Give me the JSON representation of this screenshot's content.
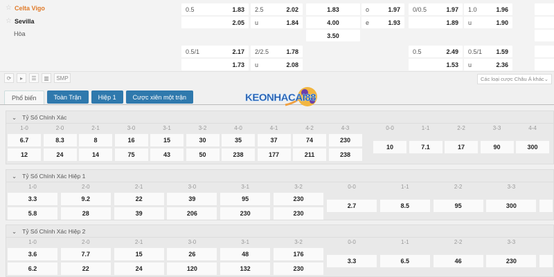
{
  "match": {
    "home": "Celta Vigo",
    "away": "Sevilla",
    "draw": "Hòa",
    "star_icon": "star-icon"
  },
  "odds_rows": [
    [
      [
        "0.5",
        "1.83"
      ],
      [
        "2.5",
        "2.02"
      ],
      [
        "",
        "1.83"
      ],
      [
        "o",
        "1.97"
      ],
      [
        "0/0.5",
        "1.97"
      ],
      [
        "1.0",
        "1.96"
      ]
    ],
    [
      [
        "",
        "2.05"
      ],
      [
        "u",
        "1.84"
      ],
      [
        "",
        "4.00"
      ],
      [
        "e",
        "1.93"
      ],
      [
        "",
        "1.89"
      ],
      [
        "u",
        "1.90"
      ]
    ],
    [
      null,
      null,
      [
        "",
        "3.50"
      ],
      null,
      null,
      null
    ],
    [
      [
        "0.5/1",
        "2.17"
      ],
      [
        "2/2.5",
        "1.78"
      ],
      null,
      null,
      [
        "0.5",
        "2.49"
      ],
      [
        "0.5/1",
        "1.59"
      ]
    ],
    [
      [
        "",
        "1.73"
      ],
      [
        "u",
        "2.08"
      ],
      null,
      null,
      [
        "",
        "1.53"
      ],
      [
        "u",
        "2.36"
      ]
    ]
  ],
  "toolbar": {
    "icons": [
      "refresh-icon",
      "play-icon",
      "list-icon",
      "stats-icon"
    ],
    "smp": "SMP",
    "dropdown": "Các loại cược Châu Á khác"
  },
  "tabs": [
    "Phổ biến",
    "Toàn Trận",
    "Hiệp 1",
    "Cược xiên một trận"
  ],
  "logo_text": "KEONHACAI88",
  "sections": [
    {
      "title": "Tỷ Số Chính Xác",
      "scores": [
        "1-0",
        "2-0",
        "2-1",
        "3-0",
        "3-1",
        "3-2",
        "4-0",
        "4-1",
        "4-2",
        "4-3"
      ],
      "home": [
        "6.7",
        "8.3",
        "8",
        "16",
        "15",
        "30",
        "35",
        "37",
        "74",
        "230"
      ],
      "away": [
        "12",
        "24",
        "14",
        "75",
        "43",
        "50",
        "238",
        "177",
        "211",
        "238"
      ],
      "draw_scores": [
        "0-0",
        "1-1",
        "2-2",
        "3-3",
        "4-4"
      ],
      "draw": [
        "10",
        "7.1",
        "17",
        "90",
        "300"
      ]
    },
    {
      "title": "Tỷ Số Chính Xác Hiệp 1",
      "scores": [
        "1-0",
        "2-0",
        "2-1",
        "3-0",
        "3-1",
        "3-2"
      ],
      "home": [
        "3.3",
        "9.2",
        "22",
        "39",
        "95",
        "230"
      ],
      "away": [
        "5.8",
        "28",
        "39",
        "206",
        "230",
        "230"
      ],
      "draw_scores": [
        "0-0",
        "1-1",
        "2-2",
        "3-3"
      ],
      "draw": [
        "2.7",
        "8.5",
        "95",
        "300"
      ]
    },
    {
      "title": "Tỷ Số Chính Xác Hiệp 2",
      "scores": [
        "1-0",
        "2-0",
        "2-1",
        "3-0",
        "3-1",
        "3-2"
      ],
      "home": [
        "3.6",
        "7.7",
        "15",
        "26",
        "48",
        "176"
      ],
      "away": [
        "6.2",
        "22",
        "24",
        "120",
        "132",
        "230"
      ],
      "draw_scores": [
        "0-0",
        "1-1",
        "2-2",
        "3-3"
      ],
      "draw": [
        "3.3",
        "6.5",
        "46",
        "230"
      ]
    }
  ]
}
